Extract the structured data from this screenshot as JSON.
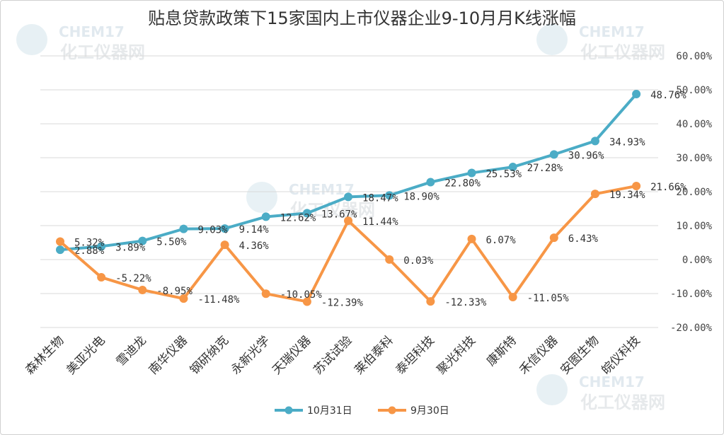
{
  "chart_data": {
    "type": "line",
    "title": "贴息贷款政策下15家国内上市仪器企业9-10月月K线涨幅",
    "categories": [
      "森林生物",
      "美亚光电",
      "雪迪龙",
      "南华仪器",
      "钢研纳克",
      "永新光学",
      "天瑞仪器",
      "苏试试验",
      "莱伯泰科",
      "泰坦科技",
      "聚光科技",
      "康斯特",
      "禾信仪器",
      "安图生物",
      "皖仪科技"
    ],
    "series": [
      {
        "name": "10月31日",
        "color": "#4BACC6",
        "values": [
          2.88,
          3.89,
          5.5,
          9.03,
          9.14,
          12.62,
          13.67,
          18.47,
          18.9,
          22.8,
          25.53,
          27.28,
          30.96,
          34.93,
          48.76
        ],
        "labels": [
          "2.88%",
          "3.89%",
          "5.50%",
          "9.03%",
          "9.14%",
          "12.62%",
          "13.67%",
          "18.47%",
          "18.90%",
          "22.80%",
          "25.53%",
          "27.28%",
          "30.96%",
          "34.93%",
          "48.76%"
        ]
      },
      {
        "name": "9月30日",
        "color": "#F79646",
        "values": [
          5.32,
          -5.22,
          -8.95,
          -11.48,
          4.36,
          -10.05,
          -12.39,
          11.44,
          0.03,
          -12.33,
          6.07,
          -11.05,
          6.43,
          19.34,
          21.66
        ],
        "labels": [
          "5.32%",
          "-5.22%",
          "-8.95%",
          "-11.48%",
          "4.36%",
          "-10.05%",
          "-12.39%",
          "11.44%",
          "0.03%",
          "-12.33%",
          "6.07%",
          "-11.05%",
          "6.43%",
          "19.34%",
          "21.66%"
        ]
      }
    ],
    "ylim": [
      -20,
      60
    ],
    "yticks": [
      -20,
      -10,
      0,
      10,
      20,
      30,
      40,
      50,
      60
    ],
    "ytick_labels": [
      "-20.00%",
      "-10.00%",
      "0.00%",
      "10.00%",
      "20.00%",
      "30.00%",
      "40.00%",
      "50.00%",
      "60.00%"
    ],
    "y_axis_side": "right",
    "grid": true,
    "legend_position": "bottom"
  },
  "watermark": {
    "brand": "CHEM17",
    "name": "化工仪器网"
  }
}
